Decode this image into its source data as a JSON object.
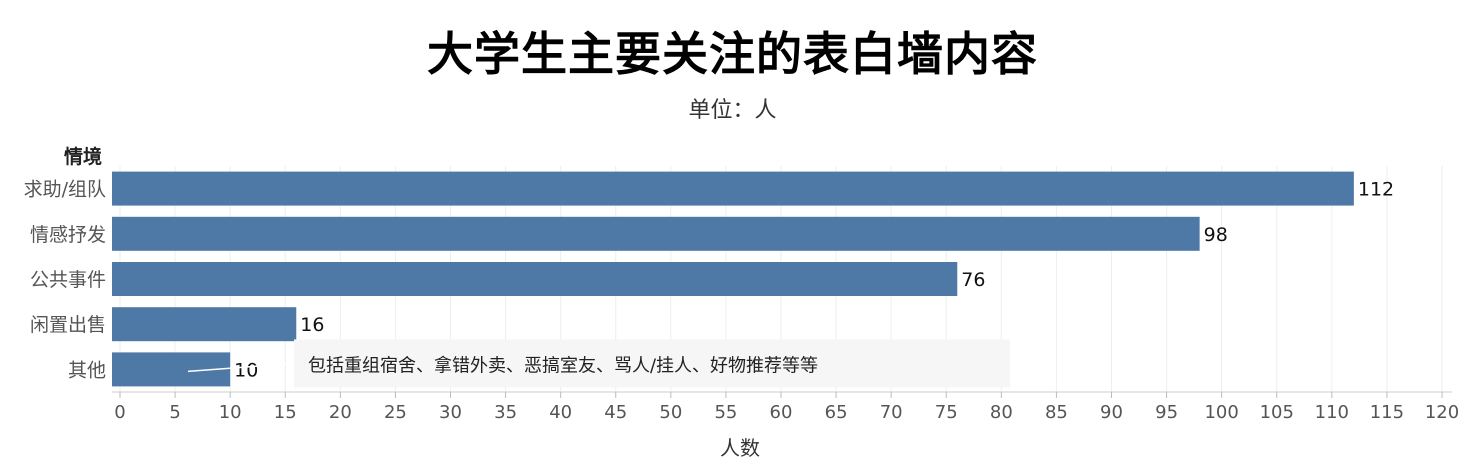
{
  "chart_data": {
    "type": "bar",
    "orientation": "horizontal",
    "title": "大学生主要关注的表白墙内容",
    "subtitle": "单位：人",
    "ylabel": "情境",
    "xlabel": "人数",
    "categories": [
      "求助/组队",
      "情感抒发",
      "公共事件",
      "闲置出售",
      "其他"
    ],
    "values": [
      112,
      98,
      76,
      16,
      10
    ],
    "xlim": [
      0,
      120
    ],
    "xticks": [
      0,
      5,
      10,
      15,
      20,
      25,
      30,
      35,
      40,
      45,
      50,
      55,
      60,
      65,
      70,
      75,
      80,
      85,
      90,
      95,
      100,
      105,
      110,
      115,
      120
    ],
    "grid": true,
    "bar_color": "#4e78a6",
    "annotation": {
      "category": "其他",
      "text": "包括重组宿舍、拿错外卖、恶搞室友、骂人/挂人、好物推荐等等"
    }
  }
}
